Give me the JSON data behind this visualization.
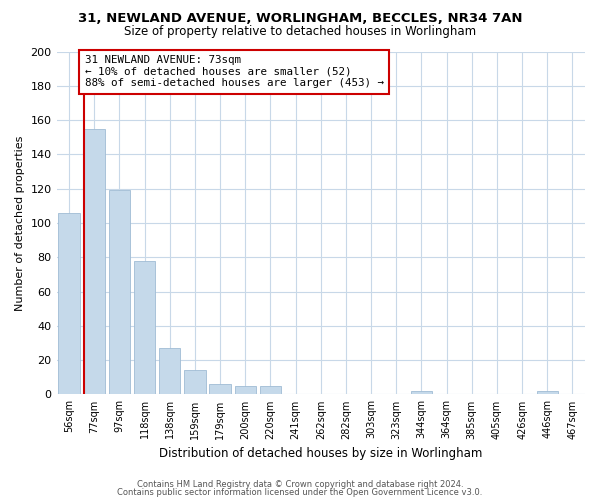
{
  "title1": "31, NEWLAND AVENUE, WORLINGHAM, BECCLES, NR34 7AN",
  "title2": "Size of property relative to detached houses in Worlingham",
  "xlabel": "Distribution of detached houses by size in Worlingham",
  "ylabel": "Number of detached properties",
  "categories": [
    "56sqm",
    "77sqm",
    "97sqm",
    "118sqm",
    "138sqm",
    "159sqm",
    "179sqm",
    "200sqm",
    "220sqm",
    "241sqm",
    "262sqm",
    "282sqm",
    "303sqm",
    "323sqm",
    "344sqm",
    "364sqm",
    "385sqm",
    "405sqm",
    "426sqm",
    "446sqm",
    "467sqm"
  ],
  "values": [
    106,
    155,
    119,
    78,
    27,
    14,
    6,
    5,
    5,
    0,
    0,
    0,
    0,
    0,
    2,
    0,
    0,
    0,
    0,
    2,
    0
  ],
  "bar_color": "#c5d9ea",
  "bar_edge_color": "#a0bcd4",
  "marker_line_color": "#cc0000",
  "annotation_line1": "31 NEWLAND AVENUE: 73sqm",
  "annotation_line2": "← 10% of detached houses are smaller (52)",
  "annotation_line3": "88% of semi-detached houses are larger (453) →",
  "annotation_box_color": "#ffffff",
  "annotation_box_edge_color": "#cc0000",
  "ylim": [
    0,
    200
  ],
  "yticks": [
    0,
    20,
    40,
    60,
    80,
    100,
    120,
    140,
    160,
    180,
    200
  ],
  "footer1": "Contains HM Land Registry data © Crown copyright and database right 2024.",
  "footer2": "Contains public sector information licensed under the Open Government Licence v3.0.",
  "bg_color": "#ffffff",
  "grid_color": "#c8d8e8"
}
